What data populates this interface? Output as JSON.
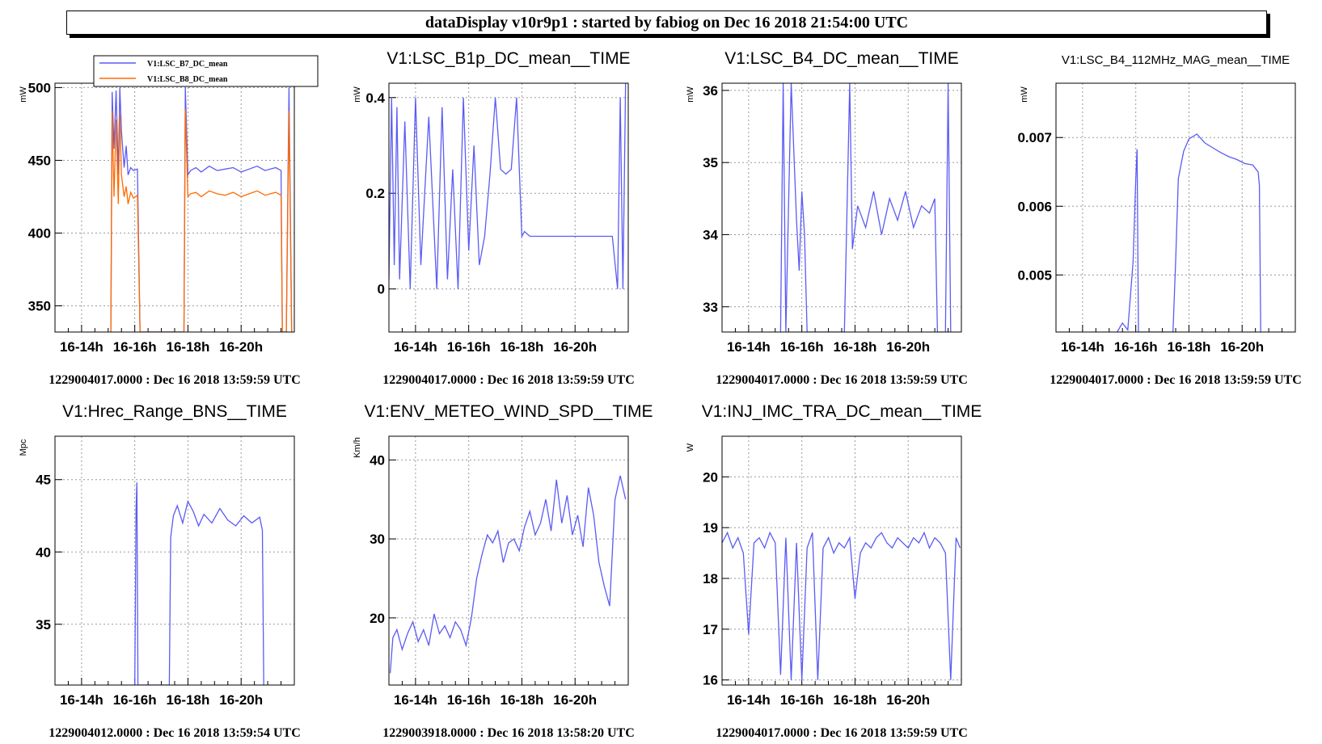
{
  "window_title": "dataDisplay v10r9p1 : started by fabiog on Dec 16 2018 21:54:00 UTC",
  "colors": {
    "series_blue": "#5b5bf5",
    "series_orange": "#ff6a00",
    "frame": "#000000",
    "grid": "#a0a0a0"
  },
  "chart_data": [
    {
      "type": "line",
      "title": "",
      "ylabel": "mW",
      "xticks": [
        "16-14h",
        "16-16h",
        "16-18h",
        "16-20h"
      ],
      "xrange": [
        13.0,
        22.0
      ],
      "ylim": [
        332,
        503
      ],
      "yticks": [
        350,
        400,
        450,
        500
      ],
      "grid": true,
      "legend": "top",
      "footer": "1229004017.0000 : Dec 16 2018 13:59:59 UTC",
      "series": [
        {
          "name": "V1:LSC_B7_DC_mean",
          "color": "#5b5bf5",
          "x": [
            15.1,
            15.15,
            15.22,
            15.3,
            15.38,
            15.44,
            15.5,
            15.6,
            15.68,
            15.75,
            15.85,
            15.95,
            16.1,
            16.2,
            16.3,
            16.4,
            16.5,
            16.7,
            16.9,
            17.1,
            17.3,
            17.5,
            17.7,
            17.85,
            17.9,
            18.0,
            18.1,
            18.3,
            18.5,
            18.8,
            19.1,
            19.4,
            19.7,
            20.0,
            20.3,
            20.6,
            20.9,
            21.1,
            21.3,
            21.5,
            21.55,
            21.6,
            21.7,
            21.8,
            21.9
          ],
          "y": [
            332,
            497,
            458,
            498,
            440,
            500,
            470,
            445,
            460,
            440,
            445,
            443,
            444,
            332,
            332,
            332,
            332,
            332,
            332,
            332,
            332,
            332,
            332,
            332,
            500,
            440,
            443,
            445,
            442,
            446,
            443,
            444,
            445,
            442,
            444,
            446,
            443,
            444,
            445,
            443,
            332,
            332,
            332,
            500,
            332
          ]
        },
        {
          "name": "V1:LSC_B8_DC_mean",
          "color": "#ff6a00",
          "x": [
            15.1,
            15.15,
            15.22,
            15.3,
            15.38,
            15.44,
            15.5,
            15.6,
            15.68,
            15.75,
            15.85,
            15.95,
            16.1,
            16.2,
            16.3,
            16.4,
            16.5,
            16.7,
            16.9,
            17.1,
            17.3,
            17.5,
            17.7,
            17.85,
            17.9,
            18.0,
            18.1,
            18.3,
            18.5,
            18.8,
            19.1,
            19.4,
            19.7,
            20.0,
            20.3,
            20.6,
            20.9,
            21.1,
            21.3,
            21.5,
            21.55,
            21.6,
            21.7,
            21.8,
            21.9
          ],
          "y": [
            332,
            484,
            425,
            478,
            420,
            482,
            440,
            425,
            432,
            420,
            428,
            424,
            426,
            332,
            332,
            332,
            332,
            332,
            332,
            332,
            332,
            332,
            332,
            332,
            485,
            425,
            427,
            428,
            425,
            429,
            427,
            426,
            428,
            425,
            427,
            429,
            426,
            427,
            428,
            426,
            332,
            332,
            332,
            484,
            332
          ]
        }
      ]
    },
    {
      "type": "line",
      "title": "V1:LSC_B1p_DC_mean__TIME",
      "ylabel": "mW",
      "xticks": [
        "16-14h",
        "16-16h",
        "16-18h",
        "16-20h"
      ],
      "xrange": [
        13.0,
        22.0
      ],
      "ylim": [
        -0.09,
        0.43
      ],
      "yticks": [
        0,
        0.2,
        0.4
      ],
      "grid": true,
      "footer": "1229004017.0000 : Dec 16 2018 13:59:59 UTC",
      "series": [
        {
          "name": "",
          "color": "#5b5bf5",
          "x": [
            13.0,
            13.1,
            13.2,
            13.3,
            13.4,
            13.6,
            13.8,
            14.0,
            14.2,
            14.5,
            14.8,
            15.0,
            15.2,
            15.4,
            15.6,
            15.8,
            16.0,
            16.2,
            16.4,
            16.6,
            16.8,
            17.0,
            17.2,
            17.4,
            17.6,
            17.8,
            18.0,
            18.1,
            18.3,
            18.6,
            19.0,
            19.4,
            19.8,
            20.2,
            20.6,
            21.0,
            21.4,
            21.6,
            21.7,
            21.8,
            21.9
          ],
          "y": [
            0.02,
            0.4,
            0.05,
            0.38,
            0.02,
            0.35,
            0.0,
            0.4,
            0.05,
            0.36,
            0.0,
            0.38,
            0.02,
            0.25,
            0.0,
            0.4,
            0.08,
            0.3,
            0.05,
            0.11,
            0.24,
            0.4,
            0.25,
            0.24,
            0.25,
            0.4,
            0.11,
            0.12,
            0.11,
            0.11,
            0.11,
            0.11,
            0.11,
            0.11,
            0.11,
            0.11,
            0.11,
            0.0,
            0.4,
            0.0,
            0.43
          ]
        }
      ]
    },
    {
      "type": "line",
      "title": "V1:LSC_B4_DC_mean__TIME",
      "ylabel": "mW",
      "xticks": [
        "16-14h",
        "16-16h",
        "16-18h",
        "16-20h"
      ],
      "xrange": [
        13.0,
        22.0
      ],
      "ylim": [
        32.65,
        36.1
      ],
      "yticks": [
        33,
        34,
        35,
        36
      ],
      "grid": true,
      "footer": "1229004017.0000 : Dec 16 2018 13:59:59 UTC",
      "series": [
        {
          "name": "",
          "color": "#5b5bf5",
          "x": [
            15.2,
            15.3,
            15.4,
            15.6,
            15.8,
            15.9,
            16.0,
            16.1,
            16.2,
            16.4,
            16.6,
            16.8,
            17.0,
            17.2,
            17.6,
            17.8,
            17.9,
            18.1,
            18.4,
            18.7,
            19.0,
            19.3,
            19.6,
            19.9,
            20.2,
            20.5,
            20.8,
            21.0,
            21.1,
            21.4,
            21.5,
            21.6
          ],
          "y": [
            32.65,
            36.1,
            32.65,
            36.1,
            34.2,
            33.5,
            34.6,
            34.0,
            32.65,
            32.65,
            32.65,
            32.65,
            32.65,
            32.65,
            32.65,
            36.1,
            33.8,
            34.4,
            34.1,
            34.6,
            34.0,
            34.5,
            34.2,
            34.6,
            34.1,
            34.4,
            34.3,
            34.5,
            32.65,
            32.65,
            36.1,
            32.65
          ]
        }
      ]
    },
    {
      "type": "line",
      "title": "V1:LSC_B4_112MHz_MAG_mean__TIME",
      "ylabel": "mW",
      "xticks": [
        "16-14h",
        "16-16h",
        "16-18h",
        "16-20h"
      ],
      "xrange": [
        13.0,
        22.0
      ],
      "ylim": [
        0.00417,
        0.00779
      ],
      "yticks": [
        0.005,
        0.006,
        0.007
      ],
      "grid": true,
      "footer": "1229004017.0000 : Dec 16 2018 13:59:59 UTC",
      "series": [
        {
          "name": "",
          "color": "#5b5bf5",
          "x": [
            15.3,
            15.5,
            15.7,
            15.9,
            16.0,
            16.05,
            16.1,
            17.4,
            17.5,
            17.6,
            17.8,
            18.0,
            18.3,
            18.6,
            18.9,
            19.2,
            19.5,
            19.8,
            20.1,
            20.4,
            20.6,
            20.65,
            20.7
          ],
          "y": [
            0.00417,
            0.0043,
            0.0042,
            0.0052,
            0.0064,
            0.00683,
            0.00417,
            0.00417,
            0.0052,
            0.0064,
            0.0068,
            0.00698,
            0.00705,
            0.00692,
            0.00685,
            0.00678,
            0.00672,
            0.00668,
            0.00662,
            0.0066,
            0.0065,
            0.0063,
            0.00417
          ]
        }
      ]
    },
    {
      "type": "line",
      "title": "V1:Hrec_Range_BNS__TIME",
      "ylabel": "Mpc",
      "xticks": [
        "16-14h",
        "16-16h",
        "16-18h",
        "16-20h"
      ],
      "xrange": [
        13.0,
        22.0
      ],
      "ylim": [
        30.8,
        48.0
      ],
      "yticks": [
        35,
        40,
        45
      ],
      "grid": true,
      "footer": "1229004012.0000 : Dec 16 2018 13:59:54 UTC",
      "series": [
        {
          "name": "",
          "color": "#5b5bf5",
          "x": [
            16.0,
            16.05,
            16.08,
            16.12,
            17.3,
            17.35,
            17.45,
            17.6,
            17.8,
            18.0,
            18.2,
            18.4,
            18.6,
            18.9,
            19.2,
            19.5,
            19.8,
            20.1,
            20.4,
            20.7,
            20.8,
            20.85
          ],
          "y": [
            30.8,
            43.0,
            44.8,
            30.8,
            30.8,
            41.0,
            42.5,
            43.2,
            42.0,
            43.5,
            42.8,
            41.8,
            42.6,
            42.0,
            43.0,
            42.2,
            41.8,
            42.5,
            42.0,
            42.4,
            41.5,
            30.8
          ]
        }
      ]
    },
    {
      "type": "line",
      "title": "V1:ENV_METEO_WIND_SPD__TIME",
      "ylabel": "Km/h",
      "xticks": [
        "16-14h",
        "16-16h",
        "16-18h",
        "16-20h"
      ],
      "xrange": [
        13.0,
        22.0
      ],
      "ylim": [
        11.5,
        43.0
      ],
      "yticks": [
        20,
        30,
        40
      ],
      "grid": true,
      "footer": "1229003918.0000 : Dec 16 2018 13:58:20 UTC",
      "series": [
        {
          "name": "",
          "color": "#5b5bf5",
          "x": [
            13.05,
            13.15,
            13.3,
            13.5,
            13.7,
            13.9,
            14.1,
            14.3,
            14.5,
            14.7,
            14.9,
            15.1,
            15.3,
            15.5,
            15.7,
            15.9,
            16.1,
            16.3,
            16.5,
            16.7,
            16.9,
            17.1,
            17.3,
            17.5,
            17.7,
            17.9,
            18.1,
            18.3,
            18.5,
            18.7,
            18.9,
            19.1,
            19.3,
            19.5,
            19.7,
            19.9,
            20.1,
            20.3,
            20.5,
            20.7,
            20.9,
            21.1,
            21.3,
            21.5,
            21.7,
            21.9
          ],
          "y": [
            13.0,
            17.5,
            18.5,
            16.0,
            18.0,
            19.5,
            17.0,
            18.5,
            16.5,
            20.5,
            18.0,
            19.0,
            17.5,
            19.5,
            18.5,
            16.5,
            20.0,
            25.0,
            28.0,
            30.5,
            29.5,
            31.0,
            27.0,
            29.5,
            30.0,
            28.5,
            31.5,
            33.5,
            30.5,
            32.0,
            35.0,
            31.0,
            37.5,
            32.0,
            35.5,
            30.5,
            33.0,
            29.0,
            36.5,
            33.0,
            27.0,
            24.0,
            21.5,
            35.0,
            38.0,
            35.0
          ]
        }
      ]
    },
    {
      "type": "line",
      "title": "V1:INJ_IMC_TRA_DC_mean__TIME",
      "ylabel": "W",
      "xticks": [
        "16-14h",
        "16-16h",
        "16-18h",
        "16-20h"
      ],
      "xrange": [
        13.0,
        22.0
      ],
      "ylim": [
        15.9,
        20.8
      ],
      "yticks": [
        16,
        17,
        18,
        19,
        20
      ],
      "grid": true,
      "footer": "1229004017.0000 : Dec 16 2018 13:59:59 UTC",
      "series": [
        {
          "name": "",
          "color": "#5b5bf5",
          "x": [
            13.0,
            13.2,
            13.4,
            13.6,
            13.8,
            14.0,
            14.2,
            14.4,
            14.6,
            14.8,
            15.0,
            15.2,
            15.4,
            15.6,
            15.8,
            16.0,
            16.2,
            16.4,
            16.6,
            16.8,
            17.0,
            17.2,
            17.4,
            17.6,
            17.8,
            18.0,
            18.2,
            18.4,
            18.6,
            18.8,
            19.0,
            19.2,
            19.4,
            19.6,
            19.8,
            20.0,
            20.2,
            20.4,
            20.6,
            20.8,
            21.0,
            21.2,
            21.4,
            21.6,
            21.8,
            21.95
          ],
          "y": [
            18.7,
            18.9,
            18.6,
            18.8,
            18.5,
            16.9,
            18.7,
            18.8,
            18.6,
            18.9,
            18.7,
            16.1,
            18.8,
            16.0,
            18.7,
            16.0,
            18.6,
            18.9,
            16.0,
            18.6,
            18.8,
            18.5,
            18.7,
            18.6,
            18.8,
            17.6,
            18.5,
            18.7,
            18.6,
            18.8,
            18.9,
            18.7,
            18.6,
            18.8,
            18.7,
            18.6,
            18.8,
            18.7,
            18.9,
            18.6,
            18.8,
            18.7,
            18.5,
            16.0,
            18.8,
            18.6
          ]
        }
      ]
    }
  ]
}
